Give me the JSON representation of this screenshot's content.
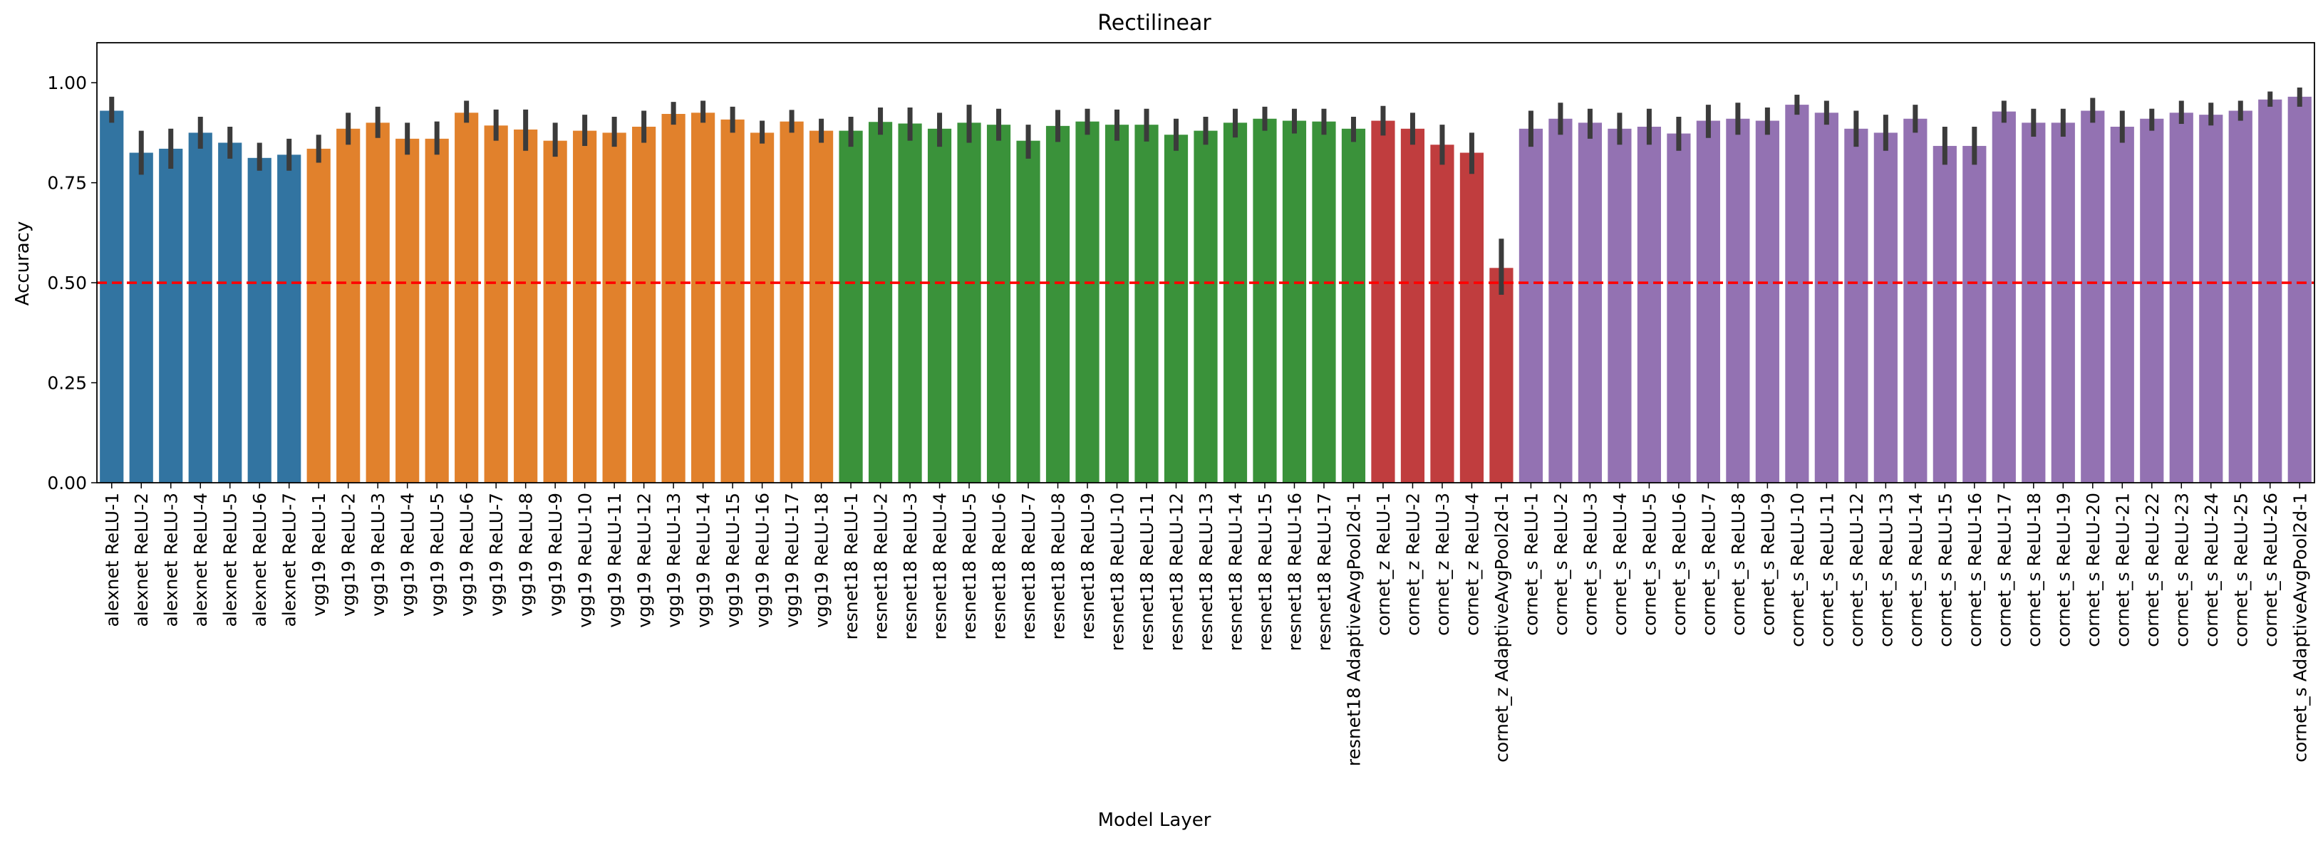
{
  "chart_data": {
    "type": "bar",
    "title": "Rectilinear",
    "xlabel": "Model Layer",
    "ylabel": "Accuracy",
    "ylim": [
      0,
      1.1
    ],
    "yticks": [
      0.0,
      0.25,
      0.5,
      0.75,
      1.0
    ],
    "ytick_labels": [
      "0.00",
      "0.25",
      "0.50",
      "0.75",
      "1.00"
    ],
    "reference_line": {
      "y": 0.5,
      "color": "#ff0000",
      "style": "dashed"
    },
    "grid": false,
    "error_bar_color": "#3b3b3b",
    "categories": [
      "alexnet ReLU-1",
      "alexnet ReLU-2",
      "alexnet ReLU-3",
      "alexnet ReLU-4",
      "alexnet ReLU-5",
      "alexnet ReLU-6",
      "alexnet ReLU-7",
      "vgg19 ReLU-1",
      "vgg19 ReLU-2",
      "vgg19 ReLU-3",
      "vgg19 ReLU-4",
      "vgg19 ReLU-5",
      "vgg19 ReLU-6",
      "vgg19 ReLU-7",
      "vgg19 ReLU-8",
      "vgg19 ReLU-9",
      "vgg19 ReLU-10",
      "vgg19 ReLU-11",
      "vgg19 ReLU-12",
      "vgg19 ReLU-13",
      "vgg19 ReLU-14",
      "vgg19 ReLU-15",
      "vgg19 ReLU-16",
      "vgg19 ReLU-17",
      "vgg19 ReLU-18",
      "resnet18 ReLU-1",
      "resnet18 ReLU-2",
      "resnet18 ReLU-3",
      "resnet18 ReLU-4",
      "resnet18 ReLU-5",
      "resnet18 ReLU-6",
      "resnet18 ReLU-7",
      "resnet18 ReLU-8",
      "resnet18 ReLU-9",
      "resnet18 ReLU-10",
      "resnet18 ReLU-11",
      "resnet18 ReLU-12",
      "resnet18 ReLU-13",
      "resnet18 ReLU-14",
      "resnet18 ReLU-15",
      "resnet18 ReLU-16",
      "resnet18 ReLU-17",
      "resnet18 AdaptiveAvgPool2d-1",
      "cornet_z ReLU-1",
      "cornet_z ReLU-2",
      "cornet_z ReLU-3",
      "cornet_z ReLU-4",
      "cornet_z AdaptiveAvgPool2d-1",
      "cornet_s ReLU-1",
      "cornet_s ReLU-2",
      "cornet_s ReLU-3",
      "cornet_s ReLU-4",
      "cornet_s ReLU-5",
      "cornet_s ReLU-6",
      "cornet_s ReLU-7",
      "cornet_s ReLU-8",
      "cornet_s ReLU-9",
      "cornet_s ReLU-10",
      "cornet_s ReLU-11",
      "cornet_s ReLU-12",
      "cornet_s ReLU-13",
      "cornet_s ReLU-14",
      "cornet_s ReLU-15",
      "cornet_s ReLU-16",
      "cornet_s ReLU-17",
      "cornet_s ReLU-18",
      "cornet_s ReLU-19",
      "cornet_s ReLU-20",
      "cornet_s ReLU-21",
      "cornet_s ReLU-22",
      "cornet_s ReLU-23",
      "cornet_s ReLU-24",
      "cornet_s ReLU-25",
      "cornet_s ReLU-26",
      "cornet_s AdaptiveAvgPool2d-1"
    ],
    "values": [
      0.93,
      0.825,
      0.835,
      0.875,
      0.85,
      0.812,
      0.82,
      0.835,
      0.885,
      0.9,
      0.86,
      0.86,
      0.925,
      0.893,
      0.883,
      0.855,
      0.88,
      0.875,
      0.89,
      0.922,
      0.925,
      0.908,
      0.875,
      0.903,
      0.88,
      0.88,
      0.902,
      0.898,
      0.885,
      0.9,
      0.895,
      0.855,
      0.892,
      0.903,
      0.895,
      0.895,
      0.87,
      0.88,
      0.9,
      0.91,
      0.905,
      0.903,
      0.885,
      0.905,
      0.885,
      0.845,
      0.825,
      0.537,
      0.885,
      0.91,
      0.9,
      0.885,
      0.89,
      0.873,
      0.905,
      0.91,
      0.905,
      0.945,
      0.925,
      0.885,
      0.875,
      0.91,
      0.842,
      0.842,
      0.928,
      0.9,
      0.9,
      0.93,
      0.89,
      0.91,
      0.925,
      0.92,
      0.93,
      0.958,
      0.965
    ],
    "error_low": [
      0.9,
      0.77,
      0.785,
      0.835,
      0.81,
      0.78,
      0.78,
      0.8,
      0.845,
      0.862,
      0.82,
      0.82,
      0.9,
      0.855,
      0.83,
      0.815,
      0.842,
      0.84,
      0.85,
      0.895,
      0.9,
      0.875,
      0.848,
      0.875,
      0.85,
      0.84,
      0.87,
      0.855,
      0.84,
      0.85,
      0.855,
      0.81,
      0.852,
      0.87,
      0.855,
      0.853,
      0.83,
      0.845,
      0.863,
      0.88,
      0.873,
      0.87,
      0.852,
      0.868,
      0.845,
      0.795,
      0.772,
      0.47,
      0.84,
      0.87,
      0.86,
      0.845,
      0.845,
      0.83,
      0.862,
      0.87,
      0.87,
      0.92,
      0.895,
      0.84,
      0.83,
      0.875,
      0.795,
      0.795,
      0.9,
      0.865,
      0.865,
      0.9,
      0.85,
      0.88,
      0.897,
      0.893,
      0.905,
      0.94,
      0.94
    ],
    "error_high": [
      0.965,
      0.88,
      0.885,
      0.915,
      0.89,
      0.85,
      0.86,
      0.87,
      0.925,
      0.94,
      0.9,
      0.903,
      0.955,
      0.933,
      0.933,
      0.9,
      0.92,
      0.915,
      0.93,
      0.952,
      0.955,
      0.94,
      0.905,
      0.932,
      0.91,
      0.915,
      0.938,
      0.938,
      0.925,
      0.945,
      0.935,
      0.895,
      0.932,
      0.935,
      0.933,
      0.935,
      0.91,
      0.915,
      0.935,
      0.94,
      0.935,
      0.935,
      0.915,
      0.942,
      0.925,
      0.895,
      0.875,
      0.61,
      0.93,
      0.95,
      0.935,
      0.925,
      0.935,
      0.915,
      0.945,
      0.95,
      0.938,
      0.97,
      0.955,
      0.93,
      0.92,
      0.945,
      0.89,
      0.89,
      0.955,
      0.935,
      0.935,
      0.962,
      0.93,
      0.935,
      0.955,
      0.95,
      0.955,
      0.978,
      0.988
    ],
    "groups": [
      {
        "count": 7,
        "color": "#3274a1"
      },
      {
        "count": 18,
        "color": "#e1812c"
      },
      {
        "count": 18,
        "color": "#3a923a"
      },
      {
        "count": 5,
        "color": "#c03d3e"
      },
      {
        "count": 27,
        "color": "#9372b2"
      }
    ]
  }
}
